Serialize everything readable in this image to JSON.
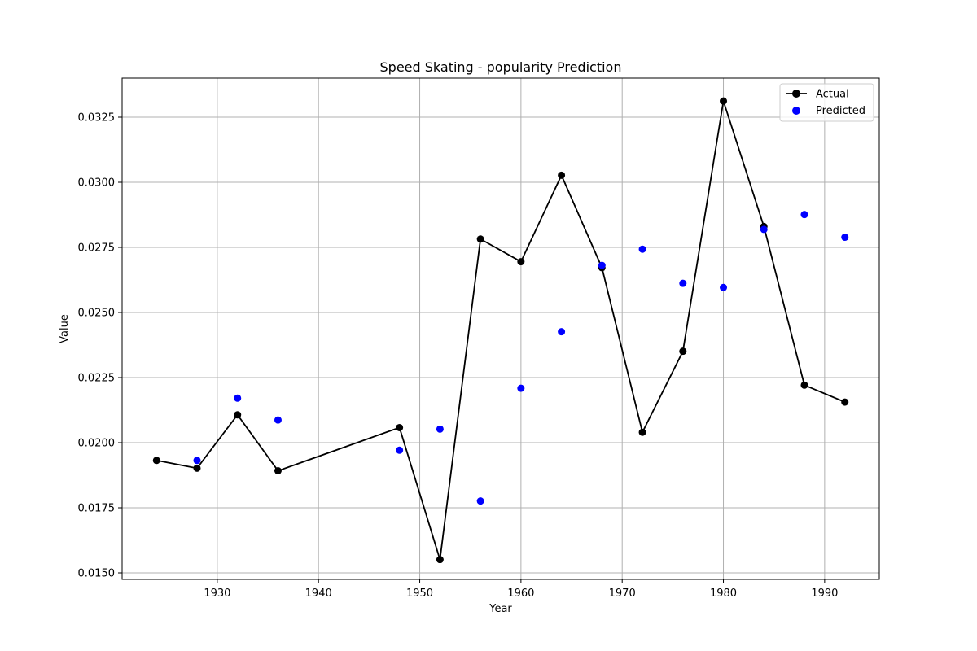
{
  "chart_data": {
    "type": "line",
    "title": "Speed Skating - popularity Prediction",
    "xlabel": "Year",
    "ylabel": "Value",
    "xlim": [
      1920.6,
      1995.4
    ],
    "ylim": [
      0.01475,
      0.034
    ],
    "x_ticks": [
      1930,
      1940,
      1950,
      1960,
      1970,
      1980,
      1990
    ],
    "y_ticks": [
      0.015,
      0.0175,
      0.02,
      0.0225,
      0.025,
      0.0275,
      0.03,
      0.0325
    ],
    "x_tick_labels": [
      "1930",
      "1940",
      "1950",
      "1960",
      "1970",
      "1980",
      "1990"
    ],
    "y_tick_labels": [
      "0.0150",
      "0.0175",
      "0.0200",
      "0.0225",
      "0.0250",
      "0.0275",
      "0.0300",
      "0.0325"
    ],
    "grid": true,
    "legend_position": "top-right",
    "series": [
      {
        "name": "Actual",
        "style": "line-marker",
        "color": "#000000",
        "x": [
          1924,
          1928,
          1932,
          1936,
          1948,
          1952,
          1956,
          1960,
          1964,
          1968,
          1972,
          1976,
          1980,
          1984,
          1988,
          1992
        ],
        "y": [
          0.01932,
          0.01902,
          0.02107,
          0.01892,
          0.02058,
          0.01551,
          0.02782,
          0.02695,
          0.03027,
          0.02672,
          0.0204,
          0.02351,
          0.03312,
          0.0283,
          0.02221,
          0.02156
        ]
      },
      {
        "name": "Predicted",
        "style": "scatter",
        "color": "#0000ff",
        "x": [
          1928,
          1932,
          1936,
          1948,
          1952,
          1956,
          1960,
          1964,
          1968,
          1972,
          1976,
          1980,
          1984,
          1988,
          1992
        ],
        "y": [
          0.01932,
          0.02171,
          0.02087,
          0.01971,
          0.02052,
          0.01776,
          0.02209,
          0.02426,
          0.02681,
          0.02743,
          0.02612,
          0.02596,
          0.02819,
          0.02876,
          0.02789
        ]
      }
    ]
  }
}
